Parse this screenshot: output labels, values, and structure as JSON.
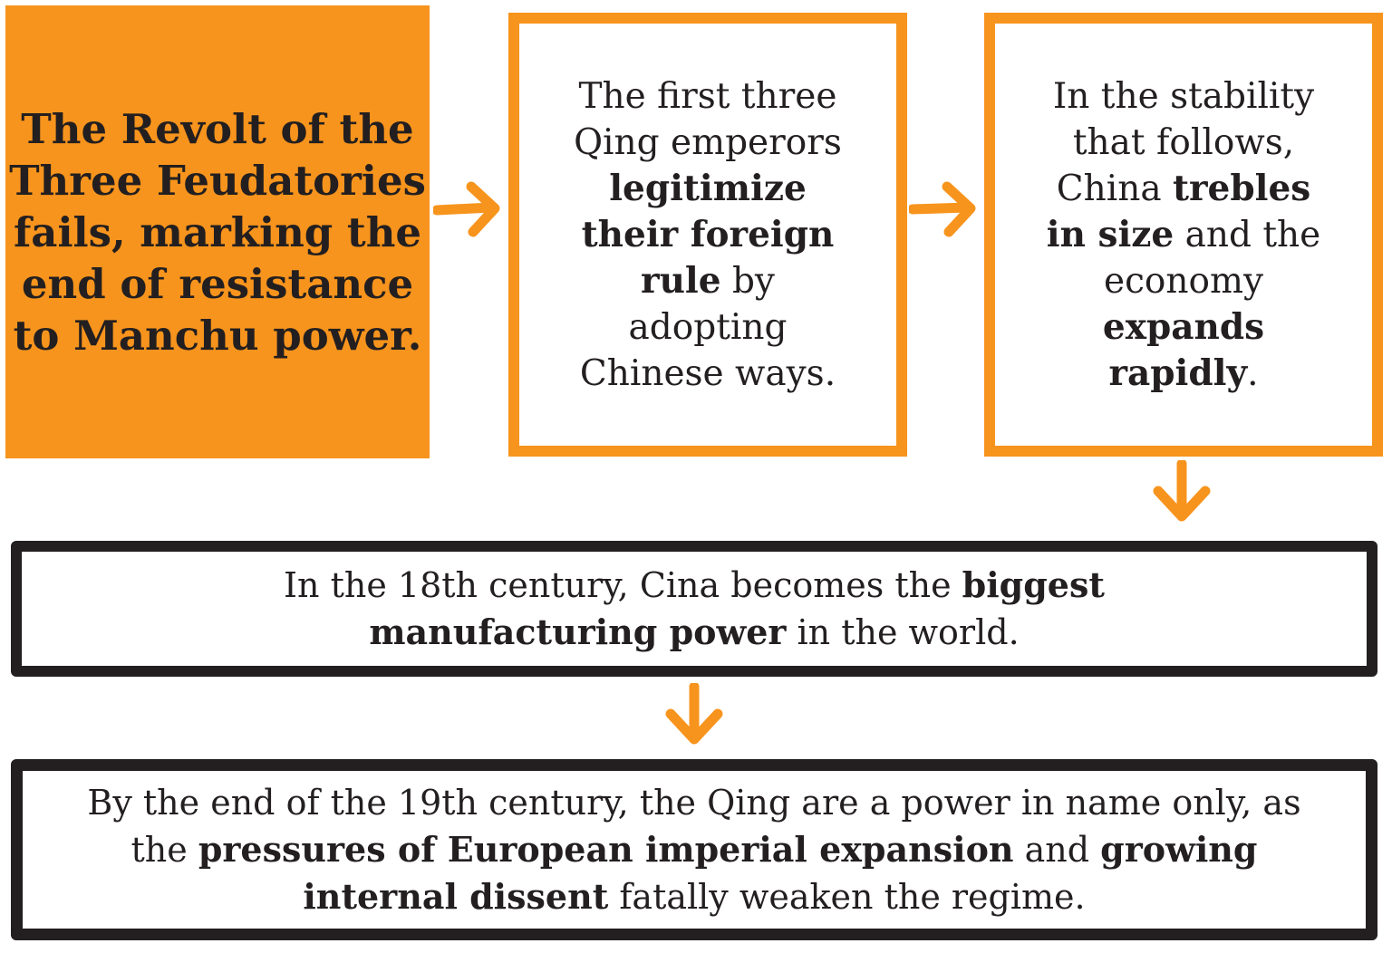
{
  "colors": {
    "accent": "#f7941d",
    "text": "#231f20",
    "background": "#ffffff"
  },
  "box1": {
    "text": "The Revolt of the Three Feudatories fails, marking the end of resistance to Manchu power."
  },
  "box2": {
    "t1": "The first three Qing emperors ",
    "b1": "legitimize their foreign rule",
    "t2": " by adopting Chinese ways."
  },
  "box3": {
    "t1": "In the stability that follows, China ",
    "b1": "trebles in size",
    "t2": " and the economy ",
    "b2": "expands rapidly",
    "t3": "."
  },
  "box4": {
    "t1": "In the 18th century, Cina becomes the ",
    "b1": "biggest manufacturing power",
    "t2": " in the world."
  },
  "box5": {
    "t1": "By the end of the 19th century, the Qing are a power in name only, as the ",
    "b1": "pressures of European imperial expansion",
    "t2": " and ",
    "b2": "growing internal dissent",
    "t3": " fatally weaken the regime."
  },
  "arrows": [
    "arrow-right-icon",
    "arrow-right-icon",
    "arrow-down-icon",
    "arrow-down-icon"
  ]
}
